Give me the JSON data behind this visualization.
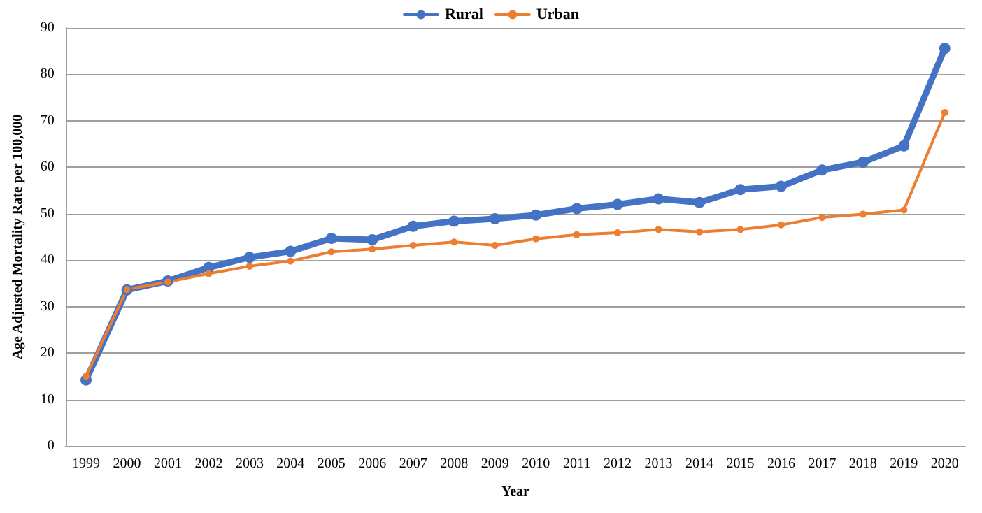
{
  "chart_data": {
    "type": "line",
    "xlabel": "Year",
    "ylabel": "Age Adjusted Mortality Rate per 100,000",
    "categories": [
      "1999",
      "2000",
      "2001",
      "2002",
      "2003",
      "2004",
      "2005",
      "2006",
      "2007",
      "2008",
      "2009",
      "2010",
      "2011",
      "2012",
      "2013",
      "2014",
      "2015",
      "2016",
      "2017",
      "2018",
      "2019",
      "2020"
    ],
    "series": [
      {
        "name": "Rural",
        "color": "#4472c4",
        "values": [
          14.2,
          33.6,
          35.5,
          38.4,
          40.6,
          41.9,
          44.7,
          44.4,
          47.3,
          48.4,
          48.9,
          49.7,
          51.1,
          52.0,
          53.2,
          52.4,
          55.2,
          55.9,
          59.4,
          61.1,
          64.6,
          85.6
        ]
      },
      {
        "name": "Urban",
        "color": "#ed7d31",
        "values": [
          15.0,
          33.7,
          35.3,
          37.1,
          38.7,
          39.8,
          41.8,
          42.4,
          43.2,
          43.9,
          43.2,
          44.6,
          45.5,
          45.9,
          46.6,
          46.1,
          46.6,
          47.6,
          49.2,
          49.9,
          50.8,
          71.8
        ]
      }
    ],
    "ylim": [
      0,
      90
    ],
    "yticks": [
      0,
      10,
      20,
      30,
      40,
      50,
      60,
      70,
      80,
      90
    ],
    "grid": "y",
    "legend": "top",
    "marker": "circle",
    "line_style": "solid"
  }
}
